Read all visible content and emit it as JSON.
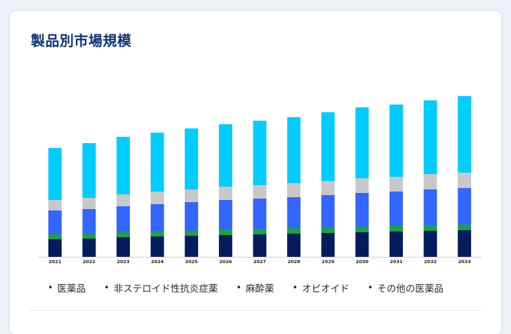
{
  "title": "製品別市場規模",
  "chart_data": {
    "type": "bar",
    "stacked": true,
    "categories": [
      "2021",
      "2022",
      "2023",
      "2024",
      "2025",
      "2026",
      "2027",
      "2028",
      "2029",
      "2030",
      "2031",
      "2032",
      "2033"
    ],
    "series": [
      {
        "name": "医薬品",
        "color": "#041c5c",
        "values": [
          25,
          26,
          28,
          29,
          30,
          31,
          32,
          33,
          34,
          35,
          36,
          37,
          38
        ]
      },
      {
        "name": "非ステロイド性抗炎症薬",
        "color": "#1ca048",
        "values": [
          7,
          7,
          7,
          7,
          7,
          8,
          8,
          8,
          8,
          8,
          8,
          8,
          8
        ]
      },
      {
        "name": "麻酔薬",
        "color": "#3366ff",
        "values": [
          34,
          35,
          37,
          39,
          41,
          42,
          43,
          44,
          46,
          48,
          49,
          51,
          52
        ]
      },
      {
        "name": "オピオイド",
        "color": "#c8c8c8",
        "values": [
          15,
          16,
          17,
          18,
          18,
          19,
          19,
          20,
          20,
          21,
          21,
          22,
          22
        ]
      },
      {
        "name": "その他の医薬品",
        "color": "#00ccff",
        "values": [
          74,
          78,
          82,
          84,
          87,
          89,
          92,
          94,
          98,
          101,
          103,
          105,
          109
        ]
      }
    ],
    "ylim": [
      0,
      240
    ],
    "grid": false,
    "legend_position": "bottom"
  }
}
